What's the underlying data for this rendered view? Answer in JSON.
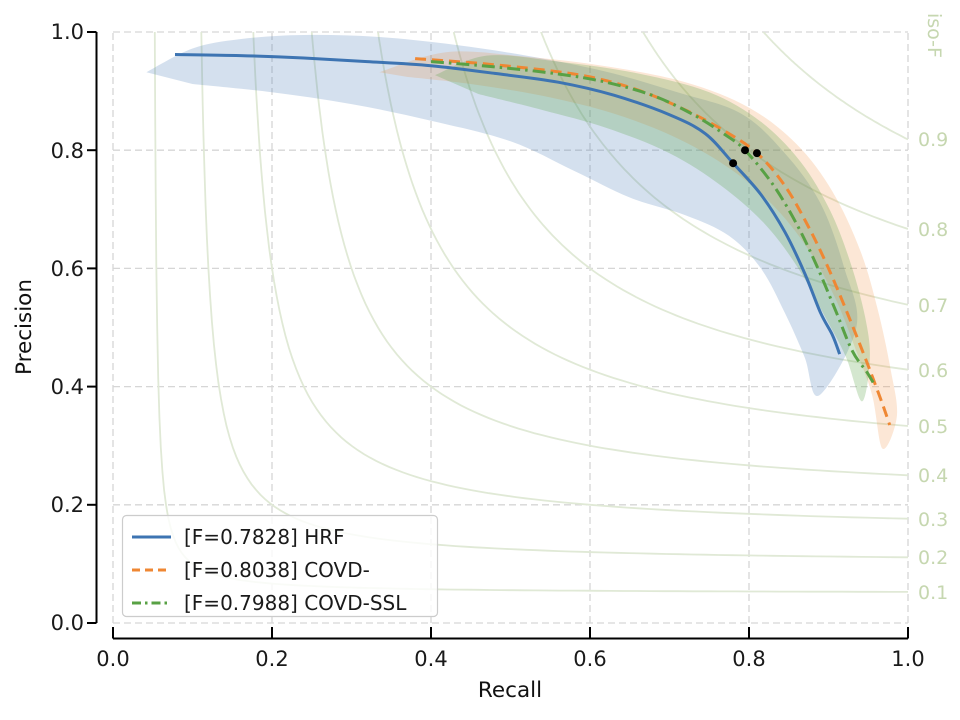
{
  "chart_data": {
    "type": "line",
    "title": "",
    "xlabel": "Recall",
    "ylabel": "Precision",
    "xlim": [
      0.0,
      1.0
    ],
    "ylim": [
      0.0,
      1.0
    ],
    "x_ticks": [
      "0.0",
      "0.2",
      "0.4",
      "0.6",
      "0.8",
      "1.0"
    ],
    "y_ticks": [
      "0.0",
      "0.2",
      "0.4",
      "0.6",
      "0.8",
      "1.0"
    ],
    "grid": "dashed-both-axes-step-0.2",
    "legend_position": "lower left",
    "iso_f": {
      "axis_label": "iso-F",
      "levels": [
        0.1,
        0.2,
        0.3,
        0.4,
        0.5,
        0.6,
        0.7,
        0.8,
        0.9
      ],
      "tick_labels": [
        "0.1",
        "0.2",
        "0.3",
        "0.4",
        "0.5",
        "0.6",
        "0.7",
        "0.8",
        "0.9"
      ],
      "line_color": "#e0e9d6",
      "text_color": "#c6d7b0"
    },
    "operating_point_color": "#000000",
    "series": [
      {
        "name": "HRF",
        "legend_label": "[F=0.7828] HRF",
        "f_score": 0.7828,
        "color": "#3d74b2",
        "line_style": "solid",
        "band_opacity": 0.22,
        "operating_point": [
          0.78,
          0.778
        ],
        "curve": [
          [
            0.078,
            0.962
          ],
          [
            0.16,
            0.96
          ],
          [
            0.24,
            0.956
          ],
          [
            0.32,
            0.95
          ],
          [
            0.4,
            0.943
          ],
          [
            0.48,
            0.93
          ],
          [
            0.56,
            0.915
          ],
          [
            0.63,
            0.893
          ],
          [
            0.7,
            0.86
          ],
          [
            0.745,
            0.828
          ],
          [
            0.78,
            0.778
          ],
          [
            0.815,
            0.725
          ],
          [
            0.845,
            0.662
          ],
          [
            0.87,
            0.592
          ],
          [
            0.89,
            0.525
          ],
          [
            0.905,
            0.487
          ],
          [
            0.914,
            0.455
          ]
        ],
        "band": [
          [
            0.042,
            0.932
          ],
          [
            0.1,
            0.972
          ],
          [
            0.16,
            0.988
          ],
          [
            0.24,
            0.995
          ],
          [
            0.33,
            0.992
          ],
          [
            0.42,
            0.98
          ],
          [
            0.52,
            0.96
          ],
          [
            0.62,
            0.933
          ],
          [
            0.71,
            0.898
          ],
          [
            0.79,
            0.862
          ],
          [
            0.845,
            0.795
          ],
          [
            0.89,
            0.71
          ],
          [
            0.92,
            0.6
          ],
          [
            0.935,
            0.5
          ],
          [
            0.888,
            0.385
          ],
          [
            0.87,
            0.45
          ],
          [
            0.845,
            0.525
          ],
          [
            0.815,
            0.6
          ],
          [
            0.775,
            0.655
          ],
          [
            0.72,
            0.69
          ],
          [
            0.65,
            0.72
          ],
          [
            0.58,
            0.765
          ],
          [
            0.5,
            0.815
          ],
          [
            0.4,
            0.85
          ],
          [
            0.3,
            0.878
          ],
          [
            0.2,
            0.898
          ],
          [
            0.1,
            0.912
          ]
        ]
      },
      {
        "name": "COVD-",
        "legend_label": "[F=0.8038] COVD-",
        "f_score": 0.8038,
        "color": "#ef8733",
        "line_style": "dashed",
        "band_opacity": 0.2,
        "operating_point": [
          0.81,
          0.795
        ],
        "curve": [
          [
            0.38,
            0.955
          ],
          [
            0.46,
            0.947
          ],
          [
            0.54,
            0.936
          ],
          [
            0.6,
            0.924
          ],
          [
            0.66,
            0.902
          ],
          [
            0.72,
            0.868
          ],
          [
            0.77,
            0.832
          ],
          [
            0.81,
            0.795
          ],
          [
            0.845,
            0.74
          ],
          [
            0.875,
            0.67
          ],
          [
            0.9,
            0.6
          ],
          [
            0.925,
            0.52
          ],
          [
            0.95,
            0.435
          ],
          [
            0.968,
            0.37
          ],
          [
            0.977,
            0.335
          ]
        ],
        "band": [
          [
            0.335,
            0.932
          ],
          [
            0.42,
            0.966
          ],
          [
            0.52,
            0.958
          ],
          [
            0.62,
            0.942
          ],
          [
            0.72,
            0.915
          ],
          [
            0.8,
            0.872
          ],
          [
            0.86,
            0.81
          ],
          [
            0.905,
            0.73
          ],
          [
            0.94,
            0.63
          ],
          [
            0.962,
            0.53
          ],
          [
            0.978,
            0.43
          ],
          [
            0.986,
            0.35
          ],
          [
            0.968,
            0.295
          ],
          [
            0.955,
            0.385
          ],
          [
            0.935,
            0.46
          ],
          [
            0.91,
            0.545
          ],
          [
            0.878,
            0.625
          ],
          [
            0.835,
            0.7
          ],
          [
            0.78,
            0.765
          ],
          [
            0.71,
            0.82
          ],
          [
            0.63,
            0.862
          ],
          [
            0.54,
            0.892
          ],
          [
            0.45,
            0.912
          ],
          [
            0.37,
            0.924
          ]
        ]
      },
      {
        "name": "COVD-SSL",
        "legend_label": "[F=0.7988] COVD-SSL",
        "f_score": 0.7988,
        "color": "#58a144",
        "line_style": "dashdot",
        "band_opacity": 0.26,
        "operating_point": [
          0.795,
          0.8
        ],
        "curve": [
          [
            0.4,
            0.95
          ],
          [
            0.48,
            0.941
          ],
          [
            0.56,
            0.929
          ],
          [
            0.62,
            0.915
          ],
          [
            0.68,
            0.892
          ],
          [
            0.73,
            0.86
          ],
          [
            0.768,
            0.828
          ],
          [
            0.795,
            0.8
          ],
          [
            0.83,
            0.742
          ],
          [
            0.86,
            0.675
          ],
          [
            0.885,
            0.605
          ],
          [
            0.91,
            0.525
          ],
          [
            0.93,
            0.46
          ],
          [
            0.948,
            0.425
          ],
          [
            0.957,
            0.405
          ]
        ],
        "band": [
          [
            0.405,
            0.927
          ],
          [
            0.47,
            0.96
          ],
          [
            0.56,
            0.95
          ],
          [
            0.66,
            0.93
          ],
          [
            0.75,
            0.898
          ],
          [
            0.815,
            0.848
          ],
          [
            0.865,
            0.78
          ],
          [
            0.902,
            0.698
          ],
          [
            0.928,
            0.608
          ],
          [
            0.946,
            0.518
          ],
          [
            0.952,
            0.448
          ],
          [
            0.942,
            0.375
          ],
          [
            0.922,
            0.45
          ],
          [
            0.895,
            0.52
          ],
          [
            0.862,
            0.6
          ],
          [
            0.82,
            0.675
          ],
          [
            0.765,
            0.74
          ],
          [
            0.7,
            0.795
          ],
          [
            0.62,
            0.838
          ],
          [
            0.54,
            0.868
          ],
          [
            0.46,
            0.895
          ]
        ]
      }
    ],
    "style": {
      "grid_color": "#d6d6d6",
      "spine_color": "#000000",
      "background": "#ffffff",
      "legend_border": "#cccccc",
      "legend_background": "rgba(255,255,255,0.8)"
    }
  }
}
